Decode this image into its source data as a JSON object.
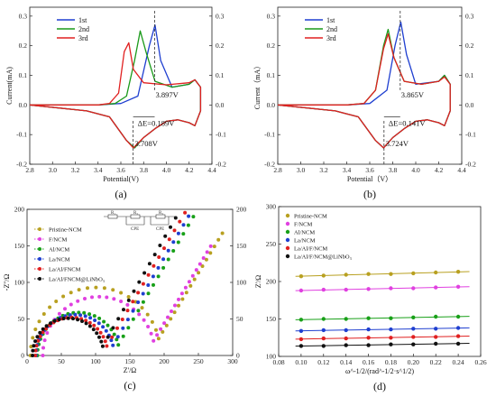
{
  "chart_data": [
    {
      "type": "line",
      "panel_label": "(a)",
      "xlabel": "Potential(V)",
      "ylabel": "Current(mA)",
      "xlim": [
        2.8,
        4.4
      ],
      "ylim": [
        -0.2,
        0.33
      ],
      "x_ticks": [
        "2.8",
        "3.0",
        "3.2",
        "3.4",
        "3.6",
        "3.8",
        "4.0",
        "4.2",
        "4.4"
      ],
      "y_ticks": [
        "-0.2",
        "-0.1",
        "0.0",
        "0.1",
        "0.2",
        "0.3"
      ],
      "series": [
        {
          "name": "1st",
          "color": "#1f3fd0",
          "points": [
            [
              2.8,
              0.0
            ],
            [
              3.4,
              0.0
            ],
            [
              3.6,
              0.005
            ],
            [
              3.75,
              0.03
            ],
            [
              3.85,
              0.2
            ],
            [
              3.9,
              0.27
            ],
            [
              3.95,
              0.15
            ],
            [
              4.05,
              0.06
            ],
            [
              4.2,
              0.07
            ],
            [
              4.25,
              0.085
            ],
            [
              4.3,
              0.06
            ],
            [
              4.3,
              -0.02
            ],
            [
              4.25,
              -0.07
            ],
            [
              4.2,
              -0.06
            ],
            [
              4.1,
              -0.05
            ],
            [
              4.0,
              -0.055
            ],
            [
              3.9,
              -0.08
            ],
            [
              3.8,
              -0.11
            ],
            [
              3.72,
              -0.145
            ],
            [
              3.65,
              -0.12
            ],
            [
              3.5,
              -0.04
            ],
            [
              3.3,
              -0.02
            ],
            [
              2.8,
              0.0
            ]
          ]
        },
        {
          "name": "2nd",
          "color": "#1a9a1a",
          "points": [
            [
              2.8,
              0.0
            ],
            [
              3.4,
              0.0
            ],
            [
              3.55,
              0.005
            ],
            [
              3.65,
              0.03
            ],
            [
              3.72,
              0.15
            ],
            [
              3.77,
              0.25
            ],
            [
              3.82,
              0.18
            ],
            [
              3.9,
              0.08
            ],
            [
              4.05,
              0.06
            ],
            [
              4.2,
              0.07
            ],
            [
              4.25,
              0.085
            ],
            [
              4.3,
              0.06
            ],
            [
              4.3,
              -0.02
            ],
            [
              4.25,
              -0.07
            ],
            [
              4.2,
              -0.06
            ],
            [
              4.1,
              -0.05
            ],
            [
              4.0,
              -0.055
            ],
            [
              3.9,
              -0.08
            ],
            [
              3.8,
              -0.11
            ],
            [
              3.72,
              -0.145
            ],
            [
              3.65,
              -0.12
            ],
            [
              3.5,
              -0.04
            ],
            [
              3.3,
              -0.02
            ],
            [
              2.8,
              0.0
            ]
          ]
        },
        {
          "name": "3rd",
          "color": "#e02020",
          "points": [
            [
              2.8,
              0.0
            ],
            [
              3.4,
              0.0
            ],
            [
              3.5,
              0.005
            ],
            [
              3.58,
              0.04
            ],
            [
              3.63,
              0.18
            ],
            [
              3.67,
              0.21
            ],
            [
              3.71,
              0.12
            ],
            [
              3.8,
              0.075
            ],
            [
              4.0,
              0.068
            ],
            [
              4.2,
              0.075
            ],
            [
              4.25,
              0.085
            ],
            [
              4.3,
              0.06
            ],
            [
              4.3,
              -0.02
            ],
            [
              4.25,
              -0.07
            ],
            [
              4.2,
              -0.06
            ],
            [
              4.1,
              -0.05
            ],
            [
              4.0,
              -0.055
            ],
            [
              3.9,
              -0.08
            ],
            [
              3.8,
              -0.11
            ],
            [
              3.71,
              -0.145
            ],
            [
              3.65,
              -0.12
            ],
            [
              3.5,
              -0.04
            ],
            [
              3.3,
              -0.02
            ],
            [
              2.8,
              0.0
            ]
          ]
        }
      ],
      "annotations": [
        "3.897V",
        "3.708V",
        "ΔE=0.189V"
      ]
    },
    {
      "type": "line",
      "panel_label": "(b)",
      "xlabel": "Potential（V）",
      "ylabel": "Current（mA）",
      "xlim": [
        2.8,
        4.4
      ],
      "ylim": [
        -0.2,
        0.33
      ],
      "x_ticks": [
        "2.8",
        "3.0",
        "3.2",
        "3.4",
        "3.6",
        "3.8",
        "4.0",
        "4.2",
        "4.4"
      ],
      "y_ticks": [
        "-0.2",
        "-0.1",
        "0.0",
        "0.1",
        "0.2",
        "0.3"
      ],
      "series": [
        {
          "name": "1st",
          "color": "#1f3fd0",
          "points": [
            [
              2.8,
              0.0
            ],
            [
              3.4,
              0.0
            ],
            [
              3.6,
              0.005
            ],
            [
              3.75,
              0.05
            ],
            [
              3.82,
              0.2
            ],
            [
              3.87,
              0.28
            ],
            [
              3.92,
              0.17
            ],
            [
              4.0,
              0.07
            ],
            [
              4.2,
              0.08
            ],
            [
              4.25,
              0.1
            ],
            [
              4.3,
              0.07
            ],
            [
              4.3,
              -0.02
            ],
            [
              4.25,
              -0.07
            ],
            [
              4.2,
              -0.06
            ],
            [
              4.1,
              -0.05
            ],
            [
              4.0,
              -0.055
            ],
            [
              3.9,
              -0.08
            ],
            [
              3.8,
              -0.11
            ],
            [
              3.72,
              -0.145
            ],
            [
              3.65,
              -0.12
            ],
            [
              3.5,
              -0.04
            ],
            [
              3.3,
              -0.02
            ],
            [
              2.8,
              0.0
            ]
          ]
        },
        {
          "name": "2nd",
          "color": "#1a9a1a",
          "points": [
            [
              2.8,
              0.0
            ],
            [
              3.4,
              0.0
            ],
            [
              3.55,
              0.005
            ],
            [
              3.65,
              0.05
            ],
            [
              3.72,
              0.2
            ],
            [
              3.76,
              0.255
            ],
            [
              3.81,
              0.16
            ],
            [
              3.9,
              0.08
            ],
            [
              4.05,
              0.07
            ],
            [
              4.2,
              0.08
            ],
            [
              4.25,
              0.1
            ],
            [
              4.3,
              0.07
            ],
            [
              4.3,
              -0.02
            ],
            [
              4.25,
              -0.07
            ],
            [
              4.2,
              -0.06
            ],
            [
              4.1,
              -0.05
            ],
            [
              4.0,
              -0.055
            ],
            [
              3.9,
              -0.08
            ],
            [
              3.8,
              -0.11
            ],
            [
              3.72,
              -0.145
            ],
            [
              3.65,
              -0.12
            ],
            [
              3.5,
              -0.04
            ],
            [
              3.3,
              -0.02
            ],
            [
              2.8,
              0.0
            ]
          ]
        },
        {
          "name": "3rd",
          "color": "#e02020",
          "points": [
            [
              2.8,
              0.0
            ],
            [
              3.4,
              0.0
            ],
            [
              3.55,
              0.005
            ],
            [
              3.65,
              0.05
            ],
            [
              3.72,
              0.19
            ],
            [
              3.76,
              0.24
            ],
            [
              3.81,
              0.16
            ],
            [
              3.9,
              0.08
            ],
            [
              4.05,
              0.07
            ],
            [
              4.2,
              0.08
            ],
            [
              4.25,
              0.095
            ],
            [
              4.3,
              0.07
            ],
            [
              4.3,
              -0.02
            ],
            [
              4.25,
              -0.07
            ],
            [
              4.2,
              -0.06
            ],
            [
              4.1,
              -0.05
            ],
            [
              4.0,
              -0.055
            ],
            [
              3.9,
              -0.08
            ],
            [
              3.8,
              -0.11
            ],
            [
              3.72,
              -0.145
            ],
            [
              3.65,
              -0.12
            ],
            [
              3.5,
              -0.04
            ],
            [
              3.3,
              -0.02
            ],
            [
              2.8,
              0.0
            ]
          ]
        }
      ],
      "annotations": [
        "3.865V",
        "3.724V",
        "ΔE=0.141V"
      ]
    },
    {
      "type": "scatter",
      "panel_label": "(c)",
      "xlabel": "Z'/Ω",
      "ylabel": "-Z''/Ω",
      "xlim": [
        0,
        300
      ],
      "ylim": [
        0,
        200
      ],
      "x_ticks": [
        "0",
        "50",
        "100",
        "150",
        "200",
        "250",
        "300"
      ],
      "y_ticks": [
        "0",
        "50",
        "100",
        "150",
        "200"
      ],
      "inset_labels": [
        "R₁",
        "R₂",
        "R₃",
        "CPE",
        "CPE"
      ],
      "series": [
        {
          "name": "Pristine-NCM",
          "color": "#b8a020",
          "center": 100,
          "radius": 95,
          "tail_slope": 1.55,
          "tail_end_x": 285
        },
        {
          "name": "F/NCM",
          "color": "#e040e0",
          "center": 105,
          "radius": 82,
          "tail_slope": 1.55,
          "tail_end_x": 268
        },
        {
          "name": "Al/NCM",
          "color": "#18a018",
          "center": 75,
          "radius": 60,
          "tail_slope": 1.6,
          "tail_end_x": 250
        },
        {
          "name": "La/NCM",
          "color": "#1f3fd0",
          "center": 70,
          "radius": 57,
          "tail_slope": 1.6,
          "tail_end_x": 243
        },
        {
          "name": "La/Al/FNCM",
          "color": "#e02020",
          "center": 65,
          "radius": 53,
          "tail_slope": 1.6,
          "tail_end_x": 238
        },
        {
          "name": "La/Al/FNCM@LiNbO₃",
          "color": "#111111",
          "center": 60,
          "radius": 52,
          "tail_slope": 1.65,
          "tail_end_x": 232
        }
      ]
    },
    {
      "type": "scatter",
      "panel_label": "(d)",
      "xlabel": "ω^-1/2/(rad^-1/2·s^1/2)",
      "ylabel": "Z'/Ω",
      "xlim": [
        0.08,
        0.26
      ],
      "ylim": [
        100,
        300
      ],
      "x_ticks": [
        "0.08",
        "0.10",
        "0.12",
        "0.14",
        "0.16",
        "0.18",
        "0.20",
        "0.22",
        "0.24",
        "0.26"
      ],
      "y_ticks": [
        "100",
        "150",
        "200",
        "250",
        "300"
      ],
      "x": [
        0.1,
        0.12,
        0.14,
        0.16,
        0.18,
        0.2,
        0.22,
        0.24
      ],
      "series": [
        {
          "name": "Pristine-NCM",
          "color": "#b8a020",
          "values": [
            207,
            208,
            209,
            210,
            210,
            211,
            212,
            213
          ]
        },
        {
          "name": "F/NCM",
          "color": "#e040e0",
          "values": [
            188,
            189,
            189,
            190,
            191,
            191,
            192,
            193
          ]
        },
        {
          "name": "Al/NCM",
          "color": "#18a018",
          "values": [
            149,
            150,
            150,
            151,
            151,
            152,
            153,
            153
          ]
        },
        {
          "name": "La/NCM",
          "color": "#1f3fd0",
          "values": [
            134,
            135,
            135,
            136,
            136,
            137,
            137,
            138
          ]
        },
        {
          "name": "La/Al/F/NCM",
          "color": "#e02020",
          "values": [
            123,
            124,
            124,
            125,
            125,
            126,
            126,
            127
          ]
        },
        {
          "name": "La/Al/F/NCM@LiNbO₃",
          "color": "#111111",
          "values": [
            114,
            114,
            115,
            115,
            116,
            116,
            117,
            117
          ]
        }
      ]
    }
  ]
}
